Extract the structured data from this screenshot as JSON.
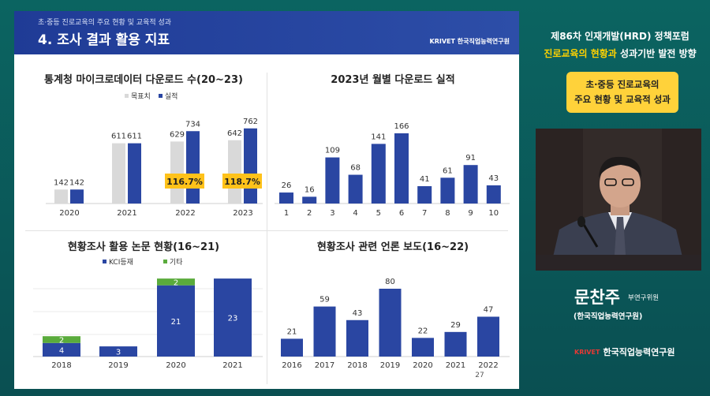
{
  "slide": {
    "subtitle": "초·중등 진로교육의 주요 현황 및 교육적 성과",
    "title": "4. 조사 결과 활용 지표",
    "logo": "KRIVET 한국직업능력연구원",
    "page_number": "27"
  },
  "chart_data": [
    {
      "type": "bar",
      "title": "통계청 마이크로데이터 다운로드 수(20~23)",
      "categories": [
        "2020",
        "2021",
        "2022",
        "2023"
      ],
      "series": [
        {
          "name": "목표치",
          "values": [
            142,
            611,
            629,
            642
          ],
          "color": "#d9d9d9"
        },
        {
          "name": "실적",
          "values": [
            142,
            611,
            734,
            762
          ],
          "color": "#2a46a2"
        }
      ],
      "annotations": [
        {
          "category": "2022",
          "text": "116.7%"
        },
        {
          "category": "2023",
          "text": "118.7%"
        }
      ],
      "ylim": [
        0,
        800
      ]
    },
    {
      "type": "bar",
      "title": "2023년 월별 다운로드 실적",
      "categories": [
        "1",
        "2",
        "3",
        "4",
        "5",
        "6",
        "7",
        "8",
        "9",
        "10"
      ],
      "values": [
        26,
        16,
        109,
        68,
        141,
        166,
        41,
        61,
        91,
        43
      ],
      "color": "#2a46a2",
      "ylim": [
        0,
        180
      ]
    },
    {
      "type": "bar",
      "stacked": true,
      "title": "현황조사 활용 논문 현황(16~21)",
      "categories": [
        "2018",
        "2019",
        "2020",
        "2021"
      ],
      "series": [
        {
          "name": "KCI등재",
          "values": [
            4,
            3,
            21,
            23
          ],
          "color": "#2a46a2"
        },
        {
          "name": "기타",
          "values": [
            2,
            0,
            2,
            0
          ],
          "color": "#5aab3c"
        }
      ],
      "ylim": [
        0,
        23
      ]
    },
    {
      "type": "bar",
      "title": "현황조사 관련 언론 보도(16~22)",
      "categories": [
        "2016",
        "2017",
        "2018",
        "2019",
        "2020",
        "2021",
        "2022"
      ],
      "values": [
        21,
        59,
        43,
        80,
        22,
        29,
        47
      ],
      "color": "#2a46a2",
      "ylim": [
        0,
        80
      ]
    }
  ],
  "right_panel": {
    "forum_title": "제86차 인재개발(HRD) 정책포럼",
    "forum_sub_highlight": "진로교육의 현황과",
    "forum_sub_rest": " 성과기반 발전 방향",
    "topic_line1": "초·중등 진로교육의",
    "topic_line2": "주요 현황 및 교육적 성과",
    "speaker_name": "문찬주",
    "speaker_role": "부연구위원",
    "speaker_org": "(한국직업능력연구원)",
    "logo_mark": "KRIVET",
    "logo_text": "한국직업능력연구원"
  },
  "colors": {
    "background": "#0b5c5a",
    "header": "#1f3b96",
    "bar_blue": "#2a46a2",
    "bar_gray": "#d9d9d9",
    "bar_green": "#5aab3c",
    "annotation_box": "#ffc21a",
    "topic_box": "#ffd23a",
    "highlight_text": "#ffd200"
  }
}
